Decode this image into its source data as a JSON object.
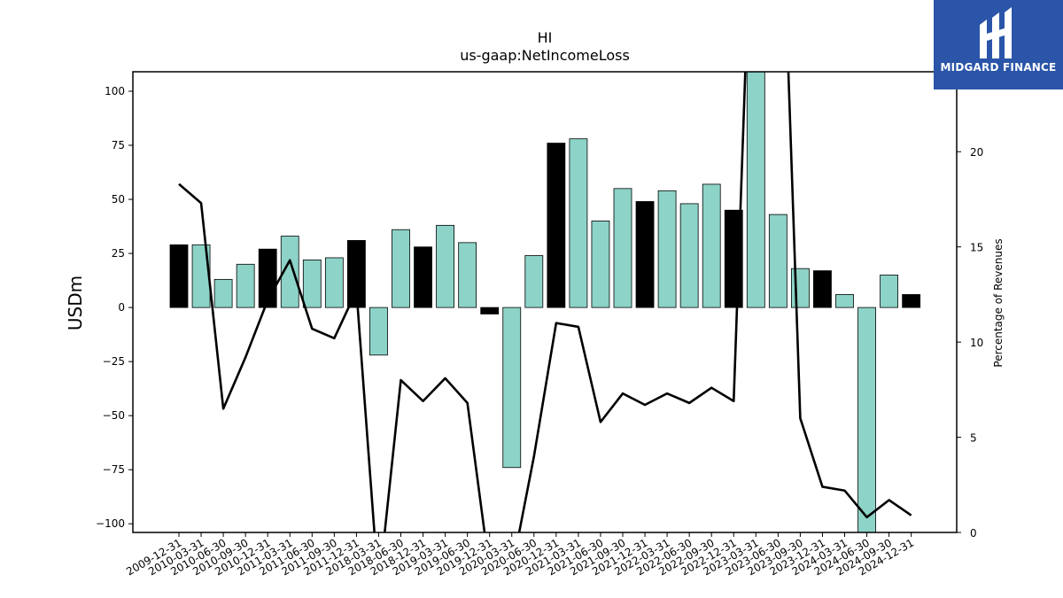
{
  "chart_data": {
    "type": "bar",
    "title": "HI",
    "subtitle": "us-gaap:NetIncomeLoss",
    "ylabel": "USDm",
    "y2label": "Percentage of Revenues",
    "ylim": [
      -104,
      109
    ],
    "y2lim": [
      0,
      24.2
    ],
    "yticks": [
      -100,
      -75,
      -50,
      -25,
      0,
      25,
      50,
      75,
      100
    ],
    "y2ticks": [
      0,
      5,
      10,
      15,
      20
    ],
    "categories": [
      "2009-12-31",
      "2010-03-31",
      "2010-06-30",
      "2010-09-30",
      "2010-12-31",
      "2011-03-31",
      "2011-06-30",
      "2011-09-30",
      "2011-12-31",
      "2018-03-31",
      "2018-06-30",
      "2018-12-31",
      "2019-03-31",
      "2019-06-30",
      "2019-12-31",
      "2020-03-31",
      "2020-06-30",
      "2020-12-31",
      "2021-03-31",
      "2021-06-30",
      "2021-09-30",
      "2021-12-31",
      "2022-03-31",
      "2022-06-30",
      "2022-09-30",
      "2022-12-31",
      "2023-03-31",
      "2023-06-30",
      "2023-09-30",
      "2023-12-31",
      "2024-03-31",
      "2024-06-30",
      "2024-09-30",
      "2024-12-31"
    ],
    "series": [
      {
        "values": [
          29,
          29,
          13,
          20,
          27,
          33,
          22,
          23,
          31,
          -22,
          36,
          28,
          38,
          30,
          -3,
          -74,
          24,
          76,
          78,
          40,
          55,
          49,
          54,
          48,
          57,
          45,
          125,
          43,
          18,
          17,
          6,
          -120,
          15,
          6
        ],
        "fiscal_year_end": [
          true,
          false,
          false,
          false,
          true,
          false,
          false,
          false,
          true,
          false,
          false,
          true,
          false,
          false,
          true,
          false,
          false,
          true,
          false,
          false,
          false,
          true,
          false,
          false,
          false,
          true,
          false,
          false,
          false,
          true,
          false,
          false,
          false,
          true
        ]
      },
      {
        "values": [
          18.3,
          17.3,
          6.5,
          9.2,
          12.2,
          14.3,
          10.7,
          10.2,
          12.7,
          -3.0,
          8.0,
          6.9,
          8.1,
          6.8,
          -2.0,
          -2.0,
          4.0,
          11.0,
          10.8,
          5.8,
          7.3,
          6.7,
          7.3,
          6.8,
          7.6,
          6.9,
          40.0,
          40.0,
          6.0,
          2.4,
          2.2,
          0.8,
          1.7,
          0.9
        ]
      }
    ],
    "colors": {
      "bar": "#8dd3c7",
      "bar_fiscal_year_end": "#000000",
      "line": "#000000"
    }
  },
  "logo": {
    "text": "MIDGARD FINANCE"
  }
}
